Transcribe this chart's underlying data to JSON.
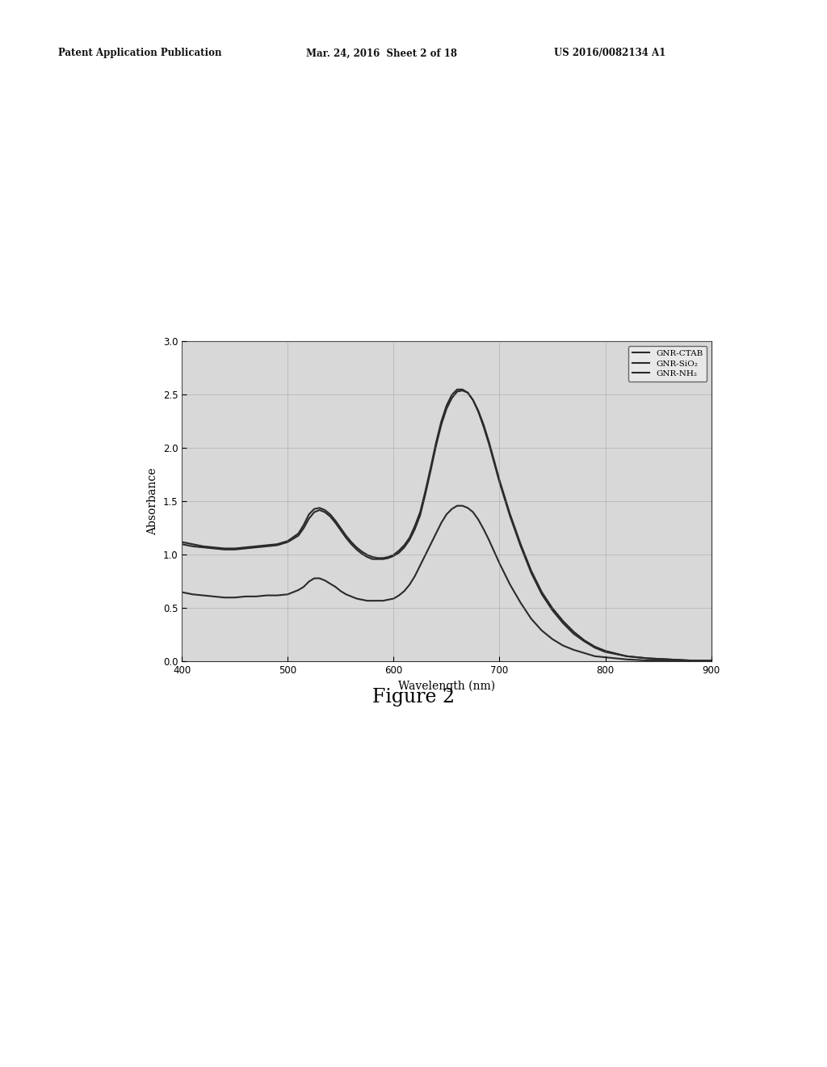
{
  "header_left": "Patent Application Publication",
  "header_mid": "Mar. 24, 2016  Sheet 2 of 18",
  "header_right": "US 2016/0082134 A1",
  "figure_caption": "Figure 2",
  "xlabel": "Wavelength (nm)",
  "ylabel": "Absorbance",
  "xlim": [
    400,
    900
  ],
  "ylim": [
    0.0,
    3.0
  ],
  "yticks": [
    0.0,
    0.5,
    1.0,
    1.5,
    2.0,
    2.5,
    3.0
  ],
  "xticks": [
    400,
    500,
    600,
    700,
    800,
    900
  ],
  "legend_labels": [
    "GNR-CTAB",
    "GNR-SiO₂",
    "GNR-NH₂"
  ],
  "line_color": "#2a2a2a",
  "plot_bg_color": "#d8d8d8",
  "background_color": "#ffffff",
  "gnr_ctab": {
    "x": [
      400,
      410,
      420,
      430,
      440,
      450,
      460,
      470,
      480,
      490,
      500,
      510,
      515,
      520,
      525,
      530,
      535,
      540,
      545,
      550,
      555,
      560,
      565,
      570,
      575,
      580,
      585,
      590,
      595,
      600,
      605,
      610,
      615,
      620,
      625,
      630,
      635,
      640,
      645,
      650,
      655,
      660,
      665,
      670,
      675,
      680,
      685,
      690,
      695,
      700,
      710,
      720,
      730,
      740,
      750,
      760,
      770,
      780,
      790,
      800,
      820,
      840,
      860,
      880,
      900
    ],
    "y": [
      1.12,
      1.1,
      1.08,
      1.07,
      1.06,
      1.06,
      1.07,
      1.08,
      1.09,
      1.1,
      1.13,
      1.2,
      1.28,
      1.38,
      1.43,
      1.44,
      1.42,
      1.38,
      1.32,
      1.25,
      1.18,
      1.12,
      1.07,
      1.03,
      1.0,
      0.98,
      0.97,
      0.97,
      0.98,
      1.0,
      1.04,
      1.09,
      1.16,
      1.27,
      1.4,
      1.6,
      1.82,
      2.05,
      2.25,
      2.4,
      2.5,
      2.55,
      2.55,
      2.52,
      2.45,
      2.35,
      2.22,
      2.06,
      1.88,
      1.7,
      1.38,
      1.1,
      0.85,
      0.65,
      0.5,
      0.38,
      0.28,
      0.2,
      0.14,
      0.1,
      0.05,
      0.03,
      0.02,
      0.01,
      0.01
    ]
  },
  "gnr_sio2": {
    "x": [
      400,
      410,
      420,
      430,
      440,
      450,
      460,
      470,
      480,
      490,
      500,
      510,
      515,
      520,
      525,
      530,
      535,
      540,
      545,
      550,
      555,
      560,
      565,
      570,
      575,
      580,
      585,
      590,
      595,
      600,
      605,
      610,
      615,
      620,
      625,
      630,
      635,
      640,
      645,
      650,
      655,
      660,
      665,
      670,
      675,
      680,
      685,
      690,
      695,
      700,
      710,
      720,
      730,
      740,
      750,
      760,
      770,
      780,
      790,
      800,
      820,
      840,
      860,
      880,
      900
    ],
    "y": [
      1.1,
      1.08,
      1.07,
      1.06,
      1.05,
      1.05,
      1.06,
      1.07,
      1.08,
      1.09,
      1.12,
      1.18,
      1.25,
      1.34,
      1.4,
      1.42,
      1.4,
      1.36,
      1.3,
      1.23,
      1.16,
      1.1,
      1.05,
      1.01,
      0.98,
      0.96,
      0.96,
      0.96,
      0.97,
      0.99,
      1.02,
      1.07,
      1.14,
      1.24,
      1.37,
      1.57,
      1.79,
      2.02,
      2.22,
      2.37,
      2.47,
      2.53,
      2.54,
      2.52,
      2.45,
      2.34,
      2.2,
      2.04,
      1.86,
      1.68,
      1.36,
      1.08,
      0.83,
      0.63,
      0.48,
      0.36,
      0.26,
      0.19,
      0.13,
      0.09,
      0.05,
      0.03,
      0.02,
      0.01,
      0.0
    ]
  },
  "gnr_nh2": {
    "x": [
      400,
      410,
      420,
      430,
      440,
      450,
      460,
      470,
      480,
      490,
      500,
      510,
      515,
      520,
      525,
      530,
      535,
      540,
      545,
      550,
      555,
      560,
      565,
      570,
      575,
      580,
      585,
      590,
      595,
      600,
      605,
      610,
      615,
      620,
      625,
      630,
      635,
      640,
      645,
      650,
      655,
      660,
      665,
      670,
      675,
      680,
      685,
      690,
      695,
      700,
      710,
      720,
      730,
      740,
      750,
      760,
      770,
      780,
      790,
      800,
      820,
      840,
      860,
      880,
      900
    ],
    "y": [
      0.65,
      0.63,
      0.62,
      0.61,
      0.6,
      0.6,
      0.61,
      0.61,
      0.62,
      0.62,
      0.63,
      0.67,
      0.7,
      0.75,
      0.78,
      0.78,
      0.76,
      0.73,
      0.7,
      0.66,
      0.63,
      0.61,
      0.59,
      0.58,
      0.57,
      0.57,
      0.57,
      0.57,
      0.58,
      0.59,
      0.62,
      0.66,
      0.72,
      0.8,
      0.9,
      1.0,
      1.1,
      1.2,
      1.3,
      1.38,
      1.43,
      1.46,
      1.46,
      1.44,
      1.4,
      1.33,
      1.24,
      1.14,
      1.03,
      0.92,
      0.72,
      0.55,
      0.4,
      0.29,
      0.21,
      0.15,
      0.11,
      0.08,
      0.05,
      0.04,
      0.02,
      0.01,
      0.01,
      0.0,
      0.0
    ]
  }
}
